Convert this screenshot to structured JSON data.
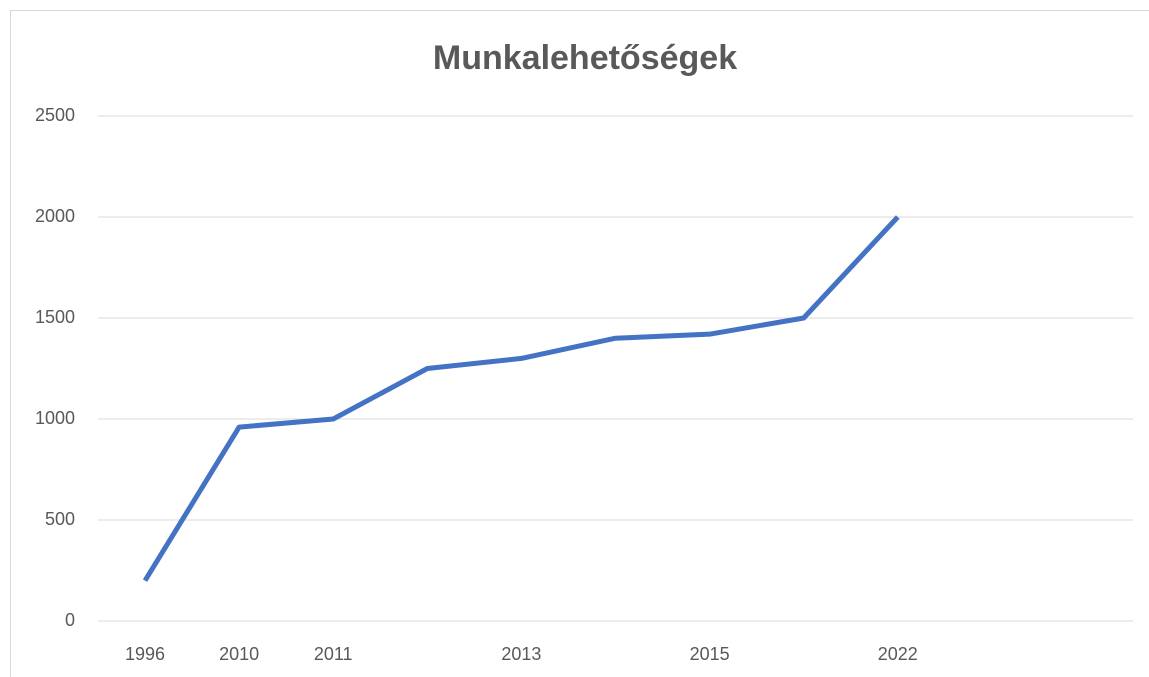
{
  "chart_data": {
    "type": "line",
    "title": "Munkalehetőségek",
    "categories": [
      "1996",
      "2010",
      "2011",
      null,
      "2013",
      null,
      "2015",
      null,
      "2022",
      null,
      null
    ],
    "series": [
      {
        "name": "Munkalehetőségek",
        "color": "#4472c4",
        "values": [
          200,
          960,
          1000,
          1250,
          1300,
          1400,
          1420,
          1500,
          2000,
          null,
          null
        ]
      }
    ],
    "ylim": [
      0,
      2500
    ],
    "yticks": [
      0,
      500,
      1000,
      1500,
      2000,
      2500
    ],
    "grid": true
  }
}
